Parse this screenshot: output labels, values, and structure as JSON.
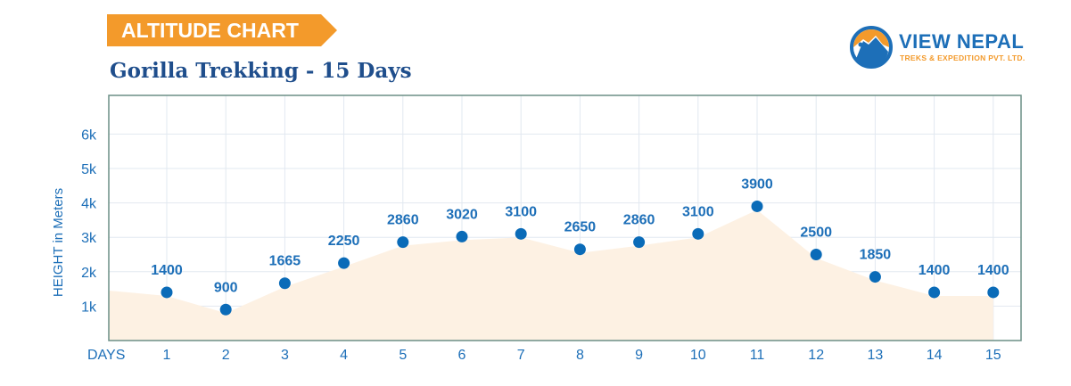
{
  "header": {
    "badge": "ALTITUDE CHART",
    "title": "Gorilla Trekking - 15 Days"
  },
  "logo": {
    "name": "VIEW NEPAL",
    "tagline": "TREKS & EXPEDITION PVT. LTD."
  },
  "chart_data": {
    "type": "line",
    "title": "Gorilla Trekking - 15 Days",
    "xlabel": "DAYS",
    "ylabel": "HEIGHT in Meters",
    "categories": [
      "1",
      "2",
      "3",
      "4",
      "5",
      "6",
      "7",
      "8",
      "9",
      "10",
      "11",
      "12",
      "13",
      "14",
      "15"
    ],
    "values": [
      1400,
      900,
      1665,
      2250,
      2860,
      3020,
      3100,
      2650,
      2860,
      3100,
      3900,
      2500,
      1850,
      1400,
      1400
    ],
    "yticks": [
      {
        "v": 1000,
        "label": "1k"
      },
      {
        "v": 2000,
        "label": "2k"
      },
      {
        "v": 3000,
        "label": "3k"
      },
      {
        "v": 4000,
        "label": "4k"
      },
      {
        "v": 5000,
        "label": "5k"
      },
      {
        "v": 6000,
        "label": "6k"
      }
    ],
    "ylim": [
      0,
      7000
    ],
    "grid": true,
    "colors": {
      "point": "#0a6bb8",
      "area": "#fdf1e3",
      "grid": "#e2e8f0",
      "frame": "#6b8f86",
      "text": "#1d6fb8",
      "accent": "#f39a2b"
    }
  }
}
